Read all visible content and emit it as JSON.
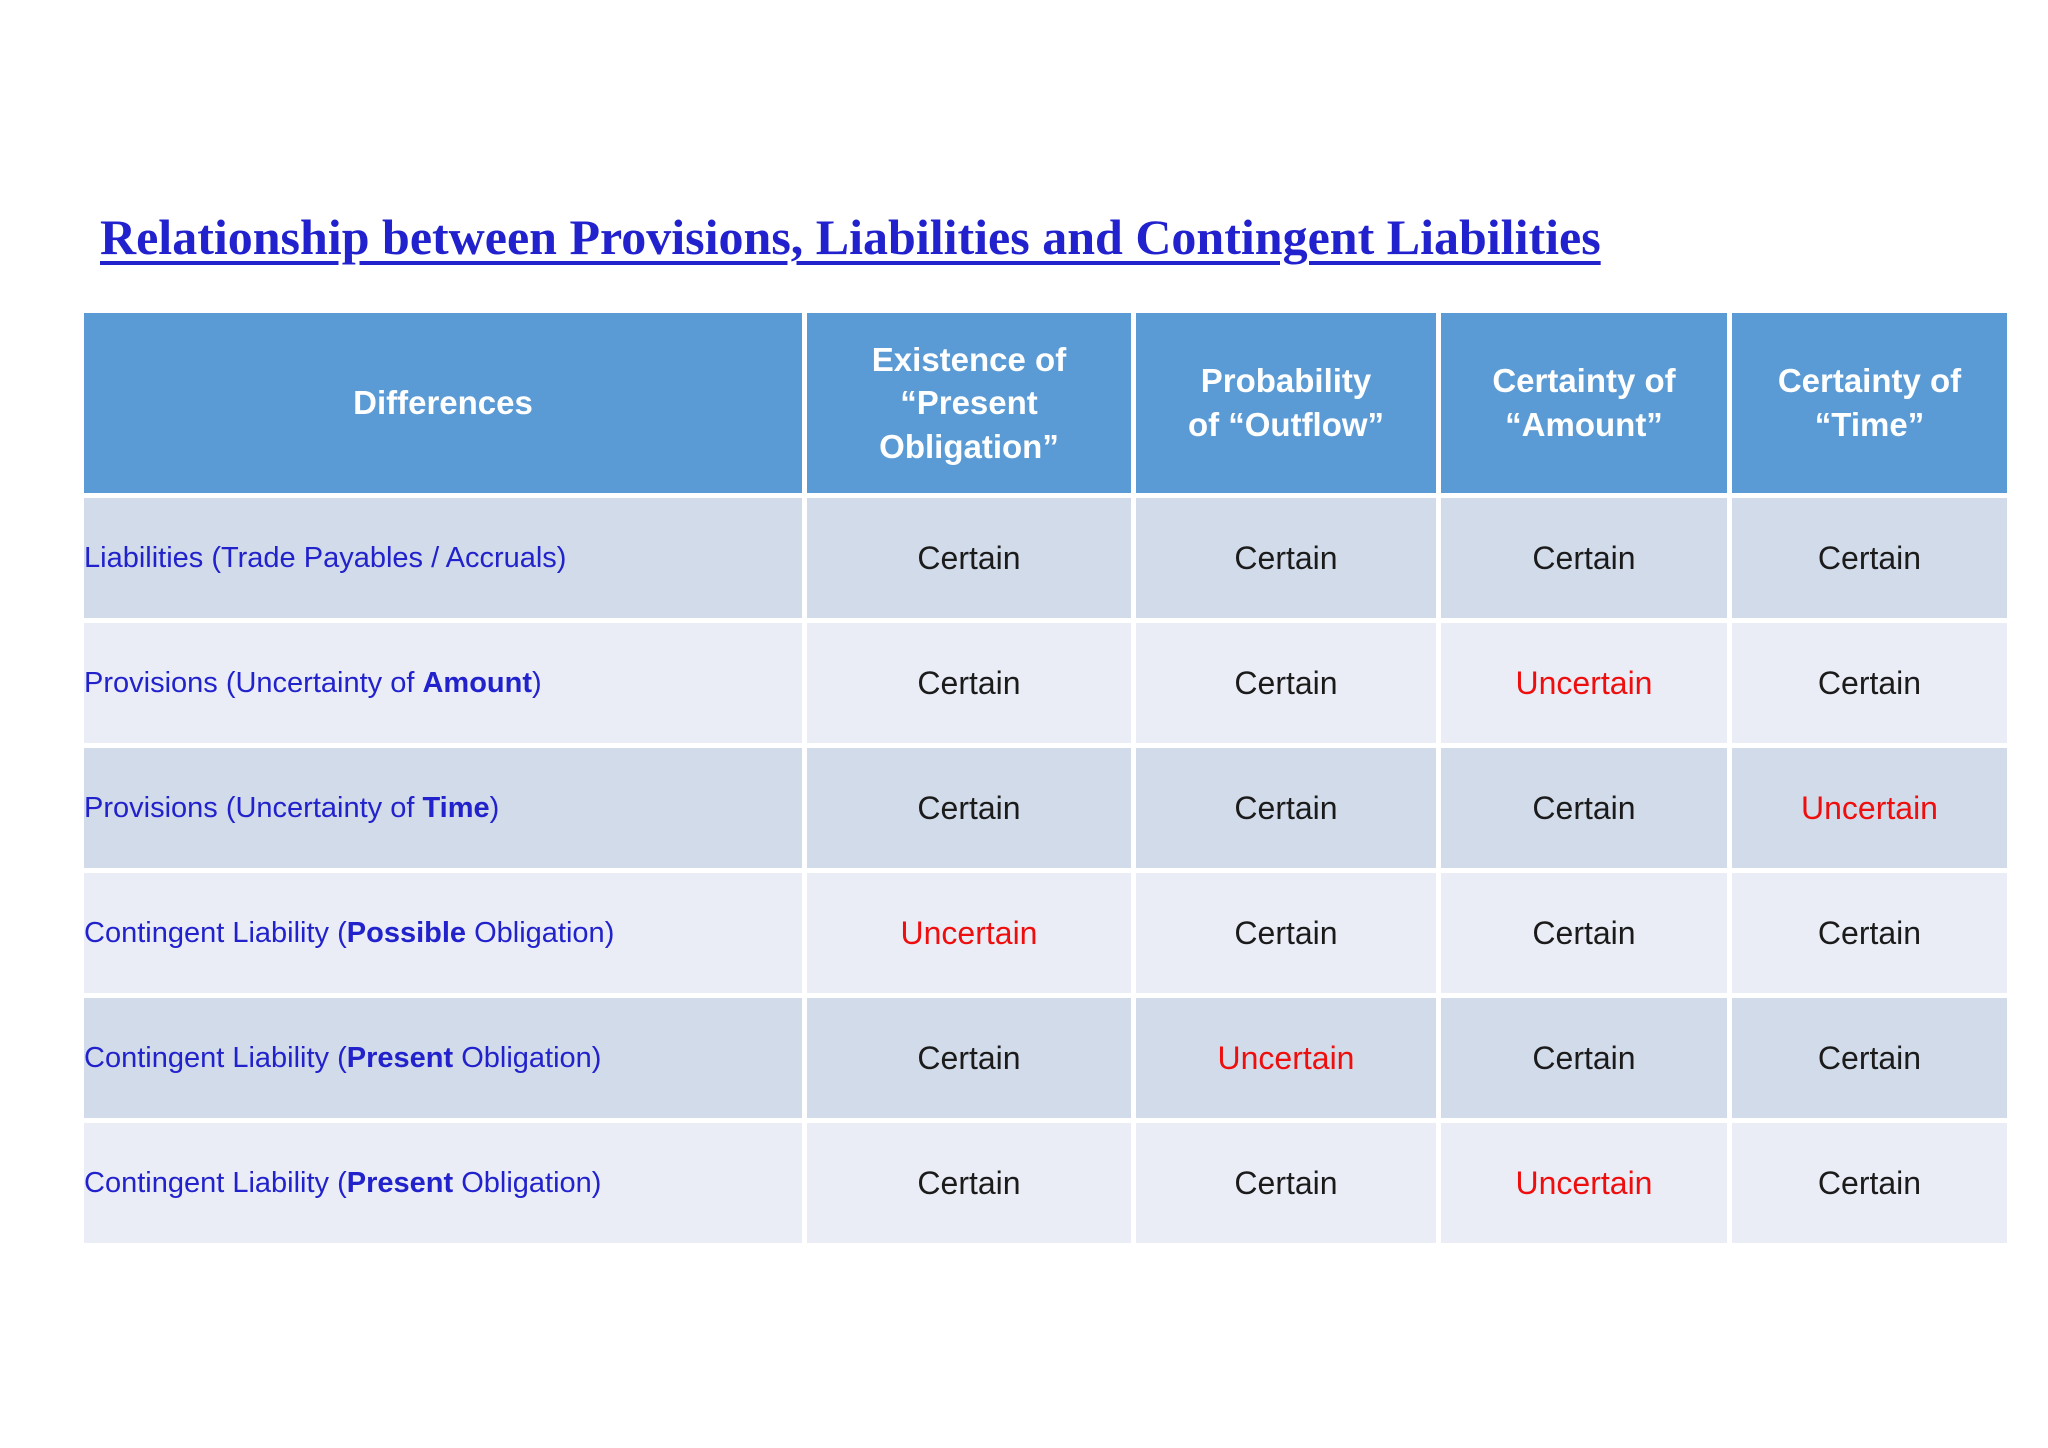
{
  "page": {
    "title": "Relationship between Provisions, Liabilities and Contingent Liabilities"
  },
  "colors": {
    "header_bg": "#5b9bd5",
    "row_dark": "#d2dbe9",
    "row_light": "#eaedf6",
    "title_blue": "#2121cd",
    "label_blue": "#2222cc",
    "uncertain_red": "#ee0e0e",
    "certain_black": "#1b1b1b"
  },
  "table": {
    "headers": [
      "Differences",
      "Existence of\n“Present\nObligation”",
      "Probability\nof “Outflow”",
      "Certainty of\n“Amount”",
      "Certainty of\n“Time”"
    ],
    "rows": [
      {
        "label": {
          "prefix": "Liabilities (Trade Payables / Accruals)",
          "bold": "",
          "suffix": ""
        },
        "cells": [
          "Certain",
          "Certain",
          "Certain",
          "Certain"
        ]
      },
      {
        "label": {
          "prefix": "Provisions (Uncertainty of ",
          "bold": "Amount",
          "suffix": ")"
        },
        "cells": [
          "Certain",
          "Certain",
          "Uncertain",
          "Certain"
        ]
      },
      {
        "label": {
          "prefix": "Provisions (Uncertainty of ",
          "bold": "Time",
          "suffix": ")"
        },
        "cells": [
          "Certain",
          "Certain",
          "Certain",
          "Uncertain"
        ]
      },
      {
        "label": {
          "prefix": "Contingent Liability (",
          "bold": "Possible",
          "suffix": " Obligation)"
        },
        "cells": [
          "Uncertain",
          "Certain",
          "Certain",
          "Certain"
        ]
      },
      {
        "label": {
          "prefix": "Contingent Liability (",
          "bold": "Present",
          "suffix": " Obligation)"
        },
        "cells": [
          "Certain",
          "Uncertain",
          "Certain",
          "Certain"
        ]
      },
      {
        "label": {
          "prefix": "Contingent Liability (",
          "bold": "Present",
          "suffix": " Obligation)"
        },
        "cells": [
          "Certain",
          "Certain",
          "Uncertain",
          "Certain"
        ]
      }
    ]
  }
}
